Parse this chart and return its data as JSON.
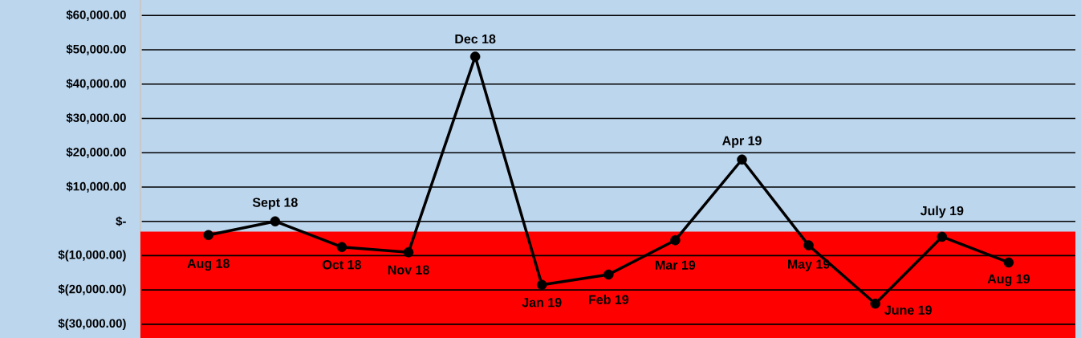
{
  "chart_data": {
    "type": "line",
    "categories": [
      "Aug 18",
      "Sept 18",
      "Oct 18",
      "Nov 18",
      "Dec 18",
      "Jan 19",
      "Feb 19",
      "Mar 19",
      "Apr 19",
      "May 19",
      "June 19",
      "July 19",
      "Aug 19"
    ],
    "series": [
      {
        "color": "#000000",
        "values": [
          -4000,
          0,
          -7500,
          -9000,
          48000,
          -18500,
          -15500,
          -5500,
          18000,
          -7000,
          -24000,
          -4500,
          -12000
        ]
      }
    ],
    "ylim": [
      -34000,
      64500
    ],
    "yticks": [
      {
        "value": -30000,
        "label": "$(30,000.00)"
      },
      {
        "value": -20000,
        "label": "$(20,000.00)"
      },
      {
        "value": -10000,
        "label": "$(10,000.00)"
      },
      {
        "value": 0,
        "label": "$-"
      },
      {
        "value": 10000,
        "label": "$10,000.00"
      },
      {
        "value": 20000,
        "label": "$20,000.00"
      },
      {
        "value": 30000,
        "label": "$30,000.00"
      },
      {
        "value": 40000,
        "label": "$40,000.00"
      },
      {
        "value": 50000,
        "label": "$50,000.00"
      },
      {
        "value": 60000,
        "label": "$60,000.00"
      }
    ],
    "bands": [
      {
        "axis": "y",
        "from": -34000,
        "to": -3000,
        "color": "#ff0000"
      }
    ],
    "grid": "y",
    "marker": "circle",
    "line_style": "solid",
    "tick_labels": "y"
  }
}
